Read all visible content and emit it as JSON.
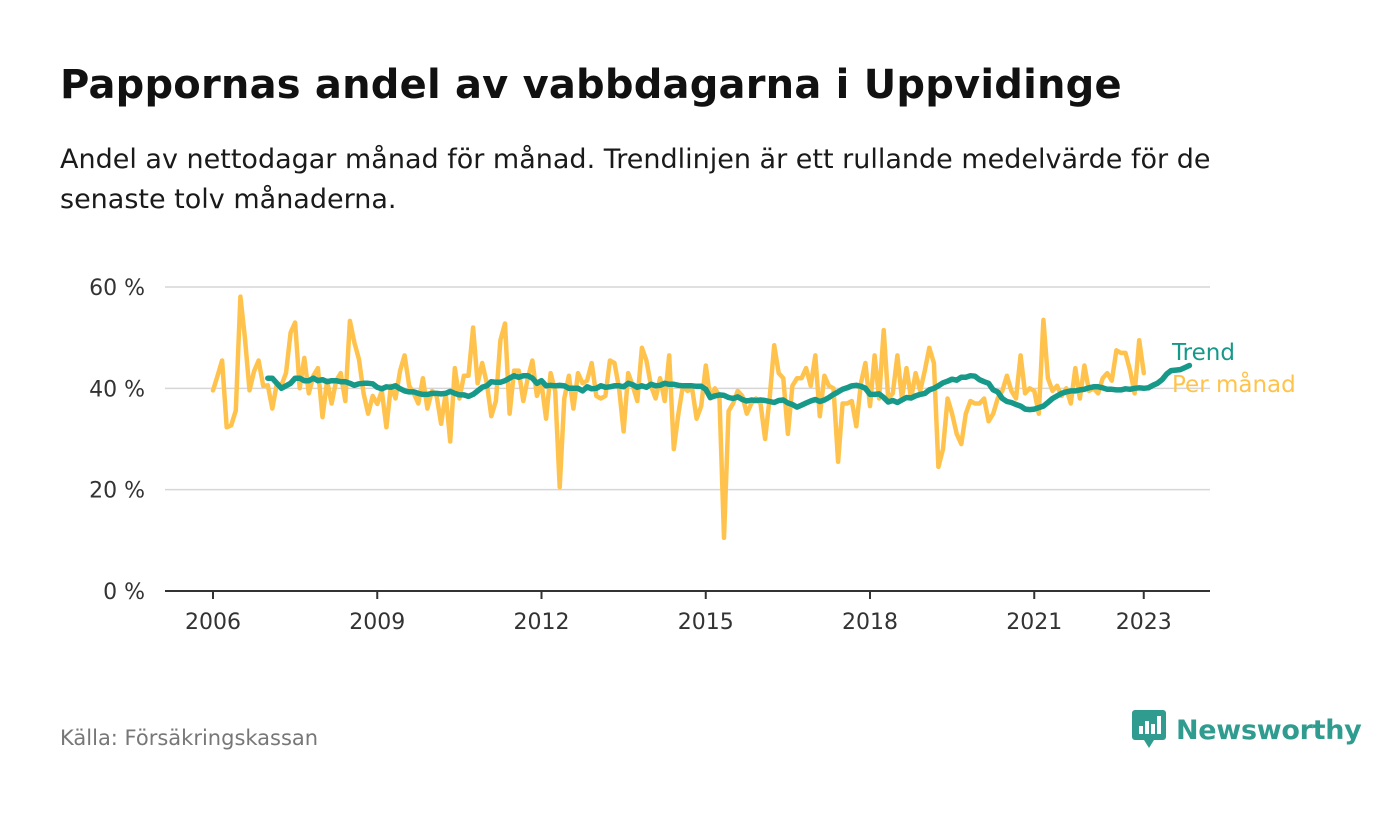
{
  "title": "Pappornas andel av vabbdagarna i Uppvidinge",
  "subtitle": "Andel av nettodagar månad för månad. Trendlinjen är ett rullande medelvärde för de senaste tolv månaderna.",
  "source": "Källa: Försäkringskassan",
  "brand": {
    "name": "Newsworthy",
    "icon": "newsworthy-logo-icon",
    "color": "#2f9c8f"
  },
  "chart_data": {
    "type": "line",
    "title": "Pappornas andel av vabbdagarna i Uppvidinge",
    "xlabel": "",
    "ylabel": "",
    "ylim": [
      0,
      60
    ],
    "yticks": [
      0,
      20,
      40,
      60
    ],
    "ytick_labels": [
      "0 %",
      "20 %",
      "40 %",
      "60 %"
    ],
    "xticks": [
      2006,
      2009,
      2012,
      2015,
      2018,
      2021,
      2023
    ],
    "xtick_labels": [
      "2006",
      "2009",
      "2012",
      "2015",
      "2018",
      "2021",
      "2023"
    ],
    "grid": true,
    "legend": "right-end labels",
    "series": [
      {
        "name": "Per månad",
        "color": "#ffc34d",
        "start": "2006-01",
        "values": [
          39.6,
          42.5,
          45.5,
          32.3,
          32.7,
          35.6,
          58.1,
          50.0,
          39.6,
          43.4,
          45.5,
          40.5,
          40.6,
          36.0,
          41.0,
          40.6,
          43.0,
          51.0,
          53.0,
          40.0,
          46.0,
          39.0,
          42.5,
          44.0,
          34.3,
          41.5,
          37.0,
          41.5,
          43.0,
          37.5,
          53.3,
          49.0,
          45.7,
          39.0,
          35.0,
          38.5,
          36.9,
          39.5,
          32.3,
          40.5,
          38.0,
          43.5,
          46.5,
          40.5,
          39.0,
          37.0,
          42.0,
          36.0,
          39.5,
          38.5,
          33.0,
          39.0,
          29.5,
          44.0,
          38.0,
          42.5,
          42.5,
          52.0,
          41.0,
          45.0,
          41.0,
          34.5,
          37.5,
          49.5,
          52.8,
          35.0,
          43.5,
          43.5,
          37.5,
          42.0,
          45.5,
          38.5,
          41.0,
          34.0,
          43.0,
          39.5,
          20.5,
          38.0,
          42.5,
          36.0,
          43.0,
          41.0,
          41.5,
          45.0,
          38.5,
          38.0,
          38.5,
          45.5,
          45.0,
          40.0,
          31.5,
          43.0,
          40.5,
          37.5,
          48.0,
          45.5,
          40.5,
          38.0,
          42.0,
          37.5,
          46.5,
          28.0,
          35.0,
          40.5,
          39.5,
          40.0,
          34.0,
          36.5,
          44.5,
          38.0,
          40.0,
          38.5,
          10.5,
          35.5,
          37.0,
          39.5,
          38.5,
          35.0,
          37.0,
          38.0,
          37.0,
          30.0,
          38.0,
          48.5,
          43.0,
          42.0,
          31.0,
          40.5,
          42.0,
          42.0,
          44.0,
          40.5,
          46.5,
          34.5,
          42.5,
          40.5,
          40.0,
          25.5,
          37.0,
          37.0,
          37.5,
          32.5,
          41.0,
          45.0,
          36.5,
          46.5,
          38.0,
          51.5,
          38.0,
          39.0,
          46.5,
          38.0,
          44.0,
          38.0,
          43.0,
          39.5,
          43.5,
          48.0,
          45.0,
          24.5,
          28.0,
          38.0,
          35.0,
          31.0,
          29.0,
          35.0,
          37.5,
          37.0,
          37.0,
          38.0,
          33.5,
          35.0,
          38.0,
          39.5,
          42.5,
          39.5,
          38.0,
          46.5,
          39.0,
          40.0,
          39.5,
          35.0,
          53.5,
          42.0,
          39.5,
          40.5,
          38.5,
          40.0,
          37.0,
          44.0,
          38.0,
          44.5,
          39.5,
          40.0,
          39.0,
          42.0,
          43.0,
          41.5,
          47.5,
          47.0,
          47.0,
          43.5,
          39.0,
          49.5,
          43.0
        ]
      },
      {
        "name": "Trend",
        "color": "#17998a",
        "start": "2007-01",
        "values": [
          42.0,
          42.0,
          41.0,
          40.0,
          40.5,
          41.0,
          42.0,
          42.0,
          41.5,
          41.5,
          42.0,
          41.5,
          41.7,
          41.3,
          41.5,
          41.5,
          41.3,
          41.3,
          41.0,
          40.6,
          40.9,
          41.0,
          41.0,
          40.9,
          40.2,
          39.9,
          40.3,
          40.2,
          40.5,
          39.9,
          39.5,
          39.3,
          39.3,
          39.0,
          38.8,
          38.8,
          39.0,
          39.0,
          38.9,
          39.0,
          39.4,
          39.0,
          38.7,
          38.7,
          38.4,
          38.8,
          39.5,
          40.2,
          40.5,
          41.3,
          41.2,
          41.2,
          41.5,
          42.0,
          42.5,
          42.2,
          42.5,
          42.5,
          42.0,
          41.0,
          41.5,
          40.5,
          40.6,
          40.5,
          40.6,
          40.5,
          40.0,
          40.0,
          40.0,
          39.5,
          40.3,
          39.9,
          40.0,
          40.5,
          40.2,
          40.3,
          40.5,
          40.5,
          40.3,
          41.0,
          40.7,
          40.2,
          40.5,
          40.2,
          40.8,
          40.5,
          40.6,
          41.0,
          40.8,
          40.8,
          40.6,
          40.5,
          40.5,
          40.5,
          40.4,
          40.4,
          39.8,
          38.2,
          38.5,
          38.7,
          38.6,
          38.2,
          38.0,
          38.3,
          37.8,
          37.5,
          37.7,
          37.6,
          37.7,
          37.6,
          37.4,
          37.2,
          37.6,
          37.7,
          37.1,
          36.8,
          36.3,
          36.7,
          37.1,
          37.5,
          37.8,
          37.4,
          37.7,
          38.2,
          38.8,
          39.3,
          39.8,
          40.1,
          40.5,
          40.6,
          40.4,
          40.0,
          38.8,
          38.8,
          38.9,
          38.2,
          37.3,
          37.6,
          37.2,
          37.7,
          38.2,
          38.1,
          38.5,
          38.8,
          39.0,
          39.7,
          40.0,
          40.5,
          41.1,
          41.4,
          41.8,
          41.6,
          42.2,
          42.2,
          42.5,
          42.4,
          41.7,
          41.3,
          41.0,
          39.7,
          39.3,
          38.0,
          37.4,
          37.2,
          36.8,
          36.5,
          35.9,
          35.8,
          35.9,
          36.2,
          36.5,
          37.2,
          38.0,
          38.5,
          39.0,
          39.3,
          39.5,
          39.5,
          39.7,
          39.8,
          40.1,
          40.3,
          40.3,
          40.1,
          39.8,
          39.8,
          39.7,
          39.7,
          39.9,
          39.8,
          40.0,
          40.1,
          40.0,
          40.1,
          40.6,
          41.0,
          41.7,
          42.8,
          43.5,
          43.6,
          43.7,
          44.1,
          44.5
        ]
      }
    ]
  }
}
